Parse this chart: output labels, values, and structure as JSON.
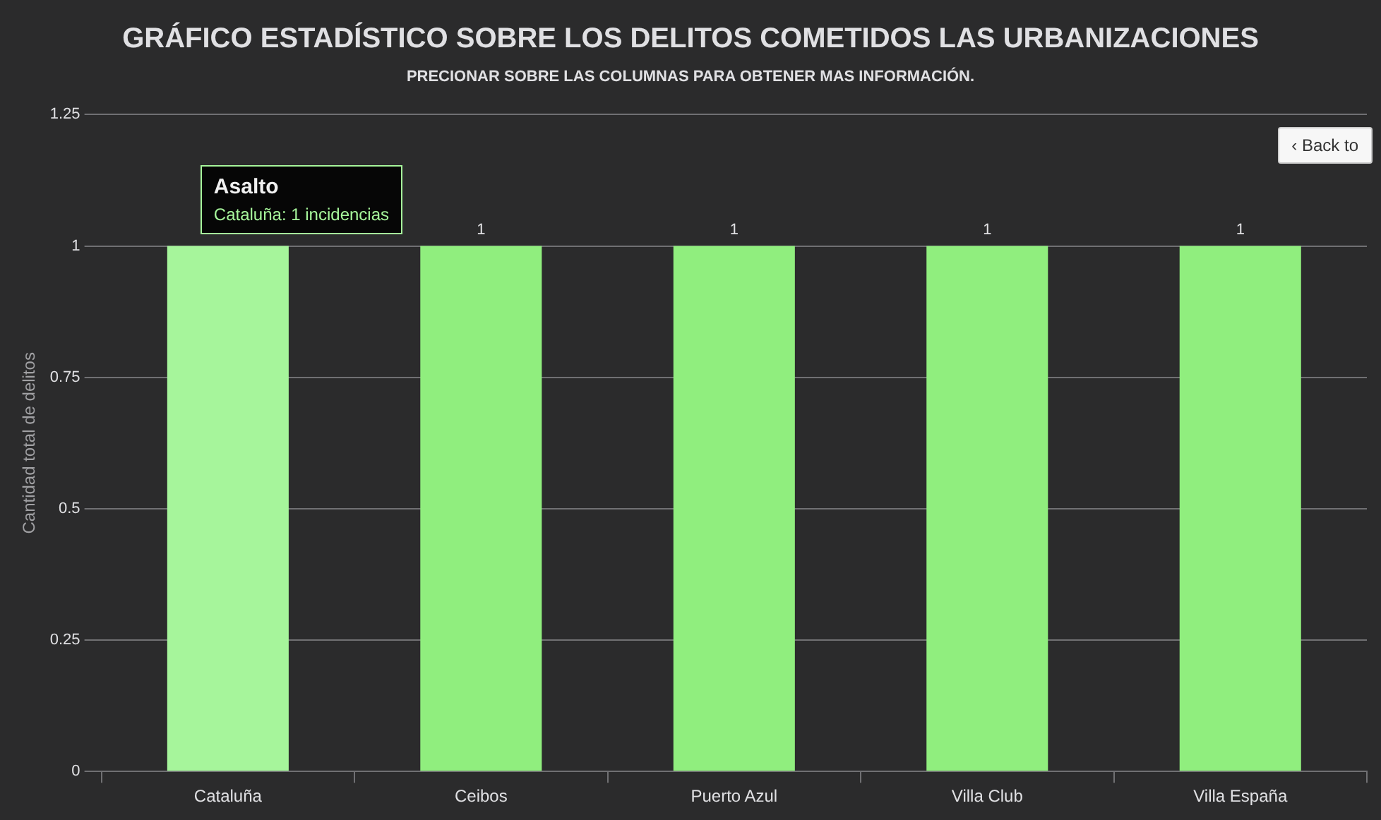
{
  "chart_data": {
    "type": "bar",
    "title": "GRÁFICO ESTADÍSTICO SOBRE LOS DELITOS COMETIDOS LAS URBANIZACIONES",
    "subtitle": "PRECIONAR SOBRE LAS COLUMNAS PARA OBTENER MAS INFORMACIÓN.",
    "ylabel": "Cantidad total de delitos",
    "categories": [
      "Cataluña",
      "Ceibos",
      "Puerto Azul",
      "Villa Club",
      "Villa España"
    ],
    "values": [
      1,
      1,
      1,
      1,
      1
    ],
    "colors": [
      "#a6f59b",
      "#90ee7e",
      "#90ee7e",
      "#90ee7e",
      "#90ee7e"
    ],
    "value_labels": [
      null,
      "1",
      "1",
      "1",
      "1"
    ],
    "ylim": [
      0,
      1.25
    ],
    "yticks": [
      0,
      0.25,
      0.5,
      0.75,
      1,
      1.25
    ],
    "grid": "y",
    "legend": false,
    "annotations": [
      {
        "text": "Asalto\nCataluña: 1 incidencias",
        "x": "Cataluña",
        "y": 1
      },
      "‹ Back to"
    ]
  }
}
